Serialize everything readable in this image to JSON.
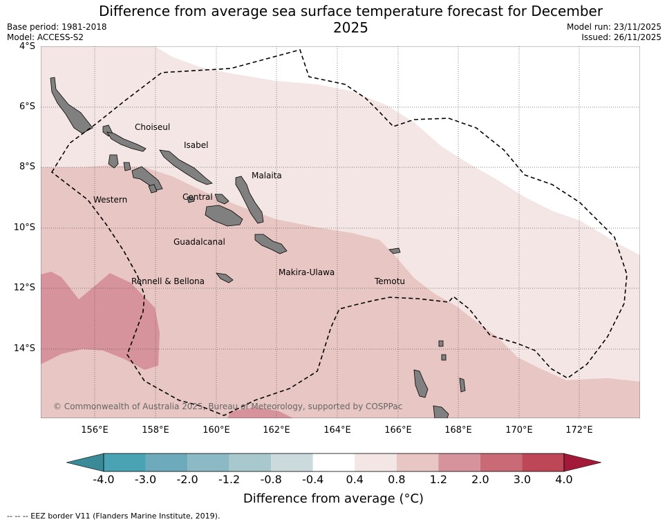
{
  "title": "Difference from average sea surface temperature forecast for December 2025",
  "meta_left": {
    "base_period": "Base period: 1981-2018",
    "model": "Model: ACCESS-S2"
  },
  "meta_right": {
    "model_run": "Model run: 23/11/2025",
    "issued": "Issued: 26/11/2025"
  },
  "map": {
    "lat_labels": [
      "4°S",
      "6°S",
      "8°S",
      "10°S",
      "12°S",
      "14°S"
    ],
    "lon_labels": [
      "156°E",
      "158°E",
      "160°E",
      "162°E",
      "164°E",
      "166°E",
      "168°E",
      "170°E",
      "172°E"
    ],
    "regions": {
      "choiseul": "Choiseul",
      "isabel": "Isabel",
      "malaita": "Malaita",
      "western": "Western",
      "central": "Central",
      "guadalcanal": "Guadalcanal",
      "makira": "Makira-Ulawa",
      "rennell": "Rennell & Bellona",
      "temotu": "Temotu"
    },
    "copyright": "© Commonwealth of Australia 2025, Bureau of Meteorology, supported by COSPPac",
    "colors": {
      "ocean_0_4_0_8": "#f4e6e5",
      "ocean_0_8_1_2": "#e7c6c3",
      "ocean_1_2_2_0": "#d7939b",
      "ocean_lowest": "#ffffff",
      "land": "#808080",
      "eez_line": "#000000"
    }
  },
  "colorbar": {
    "ticks": [
      "-4.0",
      "-3.0",
      "-2.0",
      "-1.2",
      "-0.8",
      "-0.4",
      "0.4",
      "0.8",
      "1.2",
      "2.0",
      "3.0",
      "4.0"
    ],
    "colors": [
      "#3b8a98",
      "#4aa3b3",
      "#6daabb",
      "#8bb9c4",
      "#a9c8cd",
      "#cbdadc",
      "#ffffff",
      "#f4e6e5",
      "#e7c6c3",
      "#d7939b",
      "#c96a76",
      "#bd4657",
      "#a3193a"
    ],
    "label": "Difference from average (°C)"
  },
  "footnote": "--  --  -- EEZ border V11 (Flanders Marine Institute, 2019)."
}
